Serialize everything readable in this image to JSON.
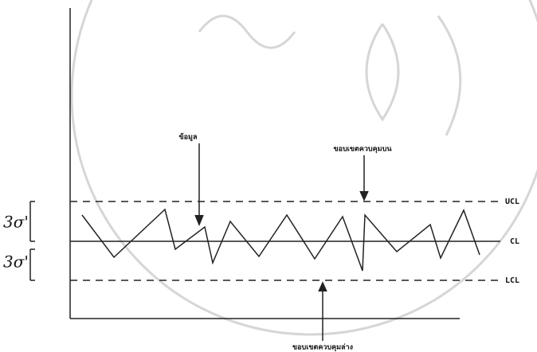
{
  "annotations": {
    "data": "ข้อมูล",
    "upper_limit": "ขอบเขตควบคุมบน",
    "lower_limit": "ขอบเขตควบคุมล่าง"
  },
  "lines": {
    "ucl": "UCL",
    "cl": "CL",
    "lcl": "LCL"
  },
  "sigma": {
    "upper": "3σ'",
    "lower": "3σ'"
  }
}
